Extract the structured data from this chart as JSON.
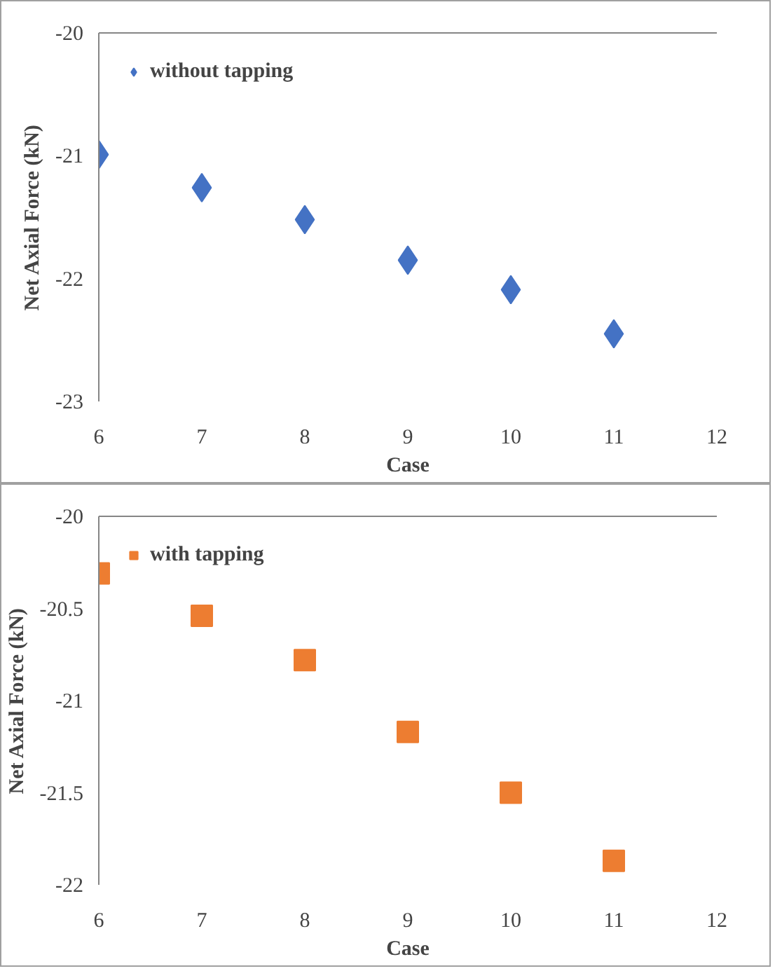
{
  "chart_data": [
    {
      "type": "scatter",
      "xlabel": "Case",
      "ylabel": "Net Axial Force (kN)",
      "x": [
        6,
        7,
        8,
        9,
        10,
        11
      ],
      "marker": "diamond",
      "series": [
        {
          "name": "without tapping",
          "color": "#4472c4",
          "values": [
            -20.99,
            -21.26,
            -21.52,
            -21.85,
            -22.09,
            -22.45
          ]
        }
      ],
      "xlim": [
        6,
        12
      ],
      "xticks": [
        6,
        7,
        8,
        9,
        10,
        11,
        12
      ],
      "ylim": [
        -23,
        -20
      ],
      "yticks": [
        -23,
        -22,
        -21,
        -20
      ],
      "grid": false,
      "legend": "top left"
    },
    {
      "type": "scatter",
      "xlabel": "Case",
      "ylabel": "Net Axial Force (kN)",
      "x": [
        6,
        7,
        8,
        9,
        10,
        11
      ],
      "marker": "square",
      "series": [
        {
          "name": "with tapping",
          "color": "#ed7d31",
          "values": [
            -20.31,
            -20.54,
            -20.78,
            -21.17,
            -21.5,
            -21.87
          ]
        }
      ],
      "xlim": [
        6,
        12
      ],
      "xticks": [
        6,
        7,
        8,
        9,
        10,
        11,
        12
      ],
      "ylim": [
        -22,
        -20
      ],
      "yticks": [
        -22,
        -21.5,
        -21,
        -20.5,
        -20
      ],
      "grid": false,
      "legend": "top left"
    }
  ]
}
